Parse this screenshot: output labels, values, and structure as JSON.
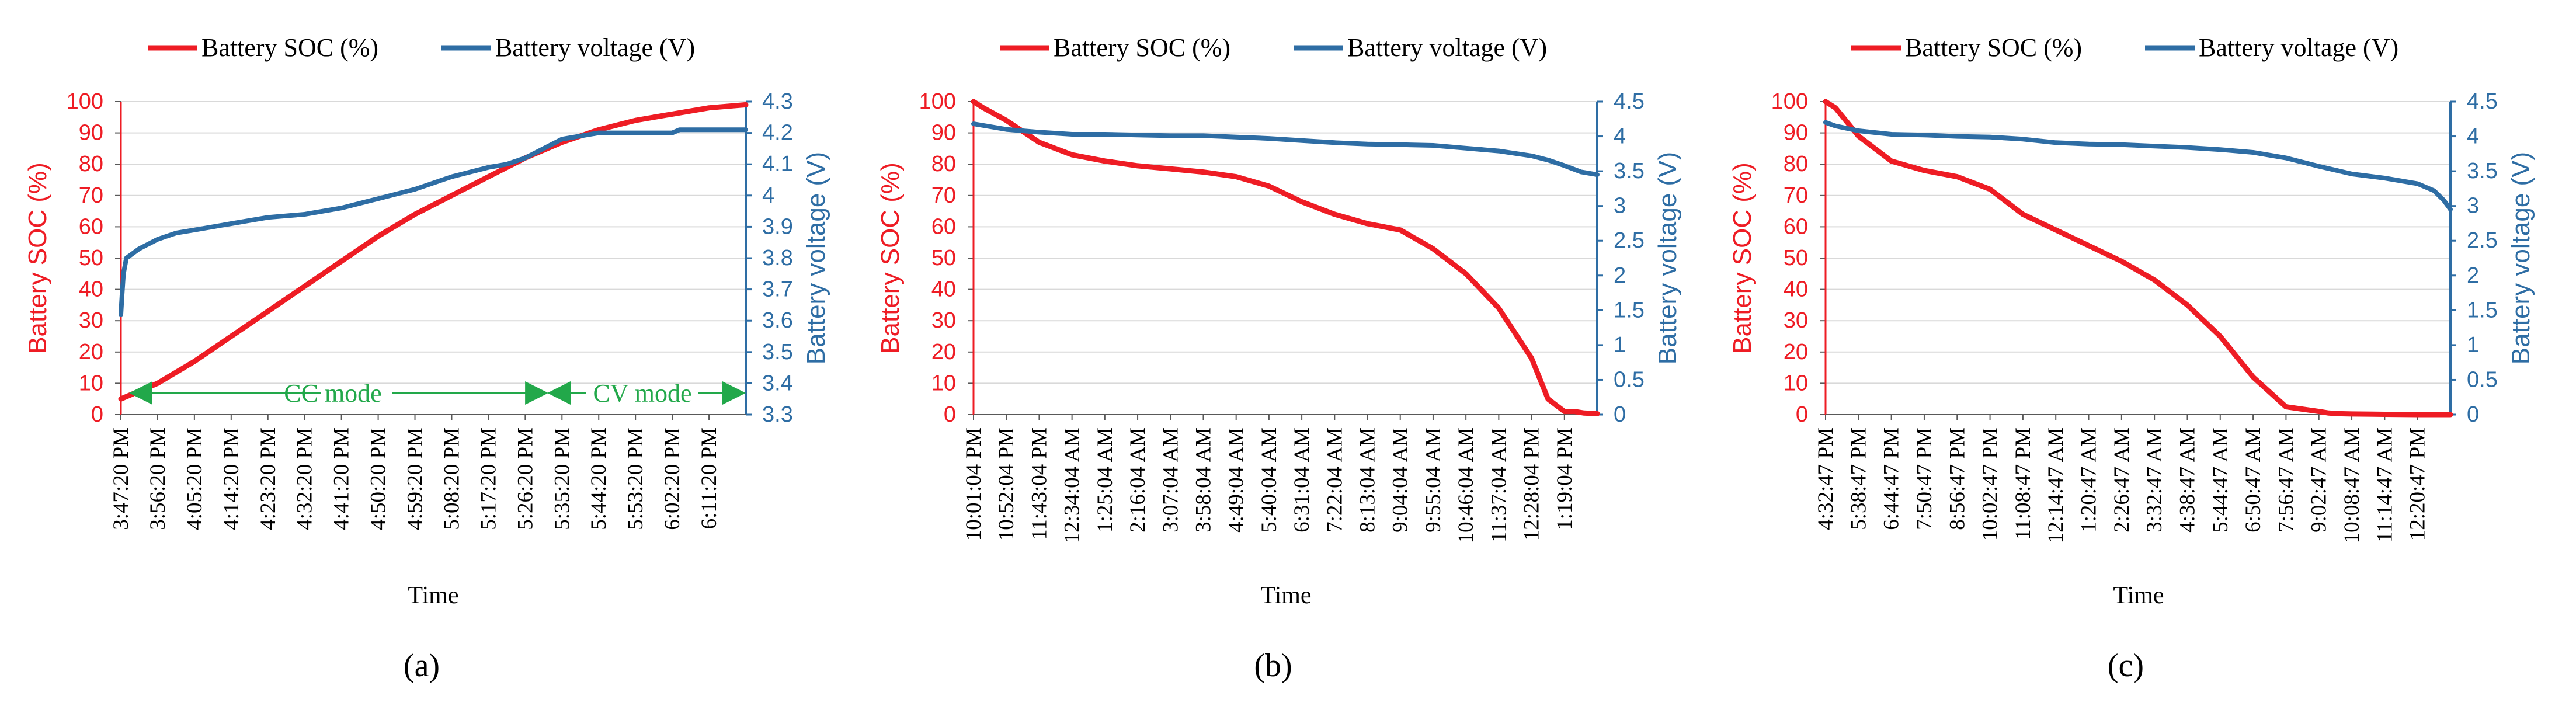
{
  "chart_data": [
    {
      "type": "line",
      "caption": "(a)",
      "xlabel": "Time",
      "legend": [
        "Battery SOC (%)",
        "Battery voltage (V)"
      ],
      "left_axis": {
        "label": "Battery SOC (%)",
        "ylim": [
          0,
          100
        ],
        "ticks": [
          "0",
          "10",
          "20",
          "30",
          "40",
          "50",
          "60",
          "70",
          "80",
          "90",
          "100"
        ]
      },
      "right_axis": {
        "label": "Battery voltage (V)",
        "ylim": [
          3.3,
          4.3
        ],
        "ticks": [
          "3.3",
          "3.4",
          "3.5",
          "3.6",
          "3.7",
          "3.8",
          "3.9",
          "4",
          "4.1",
          "4.2",
          "4.3"
        ]
      },
      "x_ticks": [
        "3:47:20 PM",
        "3:56:20 PM",
        "4:05:20 PM",
        "4:14:20 PM",
        "4:23:20 PM",
        "4:32:20 PM",
        "4:41:20 PM",
        "4:50:20 PM",
        "4:59:20 PM",
        "5:08:20 PM",
        "5:17:20 PM",
        "5:26:20 PM",
        "5:35:20 PM",
        "5:44:20 PM",
        "5:53:20 PM",
        "6:02:20 PM",
        "6:11:20 PM"
      ],
      "x_range": [
        0,
        17
      ],
      "series": [
        {
          "name": "Battery SOC (%)",
          "axis": "left",
          "x": [
            0,
            1,
            2,
            3,
            4,
            5,
            6,
            7,
            8,
            9,
            10,
            11,
            12,
            13,
            14,
            15,
            16,
            17
          ],
          "values": [
            5,
            10,
            17,
            25,
            33,
            41,
            49,
            57,
            64,
            70,
            76,
            82,
            87,
            91,
            94,
            96,
            98,
            99
          ]
        },
        {
          "name": "Battery voltage (V)",
          "axis": "right",
          "x": [
            0,
            0.03,
            0.07,
            0.15,
            0.5,
            1,
            1.5,
            2,
            2.5,
            3,
            4,
            5,
            6,
            7,
            8,
            8.5,
            9,
            10,
            10.5,
            11,
            12,
            13,
            14,
            15,
            15.2,
            16,
            17
          ],
          "values": [
            3.62,
            3.68,
            3.75,
            3.8,
            3.83,
            3.86,
            3.88,
            3.89,
            3.9,
            3.91,
            3.93,
            3.94,
            3.96,
            3.99,
            4.02,
            4.04,
            4.06,
            4.09,
            4.1,
            4.12,
            4.18,
            4.2,
            4.2,
            4.2,
            4.21,
            4.21,
            4.21
          ]
        }
      ],
      "annotations": [
        "CC mode",
        "CV mode"
      ]
    },
    {
      "type": "line",
      "caption": "(b)",
      "xlabel": "Time",
      "legend": [
        "Battery SOC (%)",
        "Battery voltage (V)"
      ],
      "left_axis": {
        "label": "Battery SOC (%)",
        "ylim": [
          0,
          100
        ],
        "ticks": [
          "0",
          "10",
          "20",
          "30",
          "40",
          "50",
          "60",
          "70",
          "80",
          "90",
          "100"
        ]
      },
      "right_axis": {
        "label": "Battery voltage (V)",
        "ylim": [
          0,
          4.5
        ],
        "ticks": [
          "0",
          "0.5",
          "1",
          "1.5",
          "2",
          "2.5",
          "3",
          "3.5",
          "4",
          "4.5"
        ]
      },
      "x_ticks": [
        "10:01:04 PM",
        "10:52:04 PM",
        "11:43:04 PM",
        "12:34:04 AM",
        "1:25:04 AM",
        "2:16:04 AM",
        "3:07:04 AM",
        "3:58:04 AM",
        "4:49:04 AM",
        "5:40:04 AM",
        "6:31:04 AM",
        "7:22:04 AM",
        "8:13:04 AM",
        "9:04:04 AM",
        "9:55:04 AM",
        "10:46:04 AM",
        "11:37:04 AM",
        "12:28:04 PM",
        "1:19:04 PM"
      ],
      "x_range": [
        0,
        19
      ],
      "series": [
        {
          "name": "Battery SOC (%)",
          "axis": "left",
          "x": [
            0,
            0.3,
            1,
            2,
            3,
            4,
            5,
            6,
            7,
            8,
            9,
            10,
            11,
            12,
            13,
            14,
            15,
            16,
            17,
            17.5,
            18,
            18.3,
            18.6,
            19
          ],
          "values": [
            100,
            98,
            94,
            87,
            83,
            81,
            79.5,
            78.5,
            77.5,
            76,
            73,
            68,
            64,
            61,
            59,
            53,
            45,
            34,
            18,
            5,
            1,
            1,
            0.5,
            0.3
          ]
        },
        {
          "name": "Battery voltage (V)",
          "axis": "right",
          "x": [
            0,
            1,
            2,
            3,
            4,
            5,
            6,
            7,
            8,
            9,
            10,
            11,
            12,
            13,
            14,
            15,
            16,
            17,
            17.5,
            18,
            18.5,
            19
          ],
          "values": [
            4.18,
            4.1,
            4.06,
            4.03,
            4.03,
            4.02,
            4.01,
            4.01,
            3.99,
            3.97,
            3.94,
            3.91,
            3.89,
            3.88,
            3.87,
            3.83,
            3.79,
            3.72,
            3.66,
            3.58,
            3.49,
            3.45
          ]
        }
      ]
    },
    {
      "type": "line",
      "caption": "(c)",
      "xlabel": "Time",
      "legend": [
        "Battery SOC (%)",
        "Battery voltage (V)"
      ],
      "left_axis": {
        "label": "Battery SOC (%)",
        "ylim": [
          0,
          100
        ],
        "ticks": [
          "0",
          "10",
          "20",
          "30",
          "40",
          "50",
          "60",
          "70",
          "80",
          "90",
          "100"
        ]
      },
      "right_axis": {
        "label": "Battery voltage (V)",
        "ylim": [
          0,
          4.5
        ],
        "ticks": [
          "0",
          "0.5",
          "1",
          "1.5",
          "2",
          "2.5",
          "3",
          "3.5",
          "4",
          "4.5"
        ]
      },
      "x_ticks": [
        "4:32:47 PM",
        "5:38:47 PM",
        "6:44:47 PM",
        "7:50:47 PM",
        "8:56:47 PM",
        "10:02:47 PM",
        "11:08:47 PM",
        "12:14:47 AM",
        "1:20:47 AM",
        "2:26:47 AM",
        "3:32:47 AM",
        "4:38:47 AM",
        "5:44:47 AM",
        "6:50:47 AM",
        "7:56:47 AM",
        "9:02:47 AM",
        "10:08:47 AM",
        "11:14:47 AM",
        "12:20:47 PM"
      ],
      "x_range": [
        0,
        19
      ],
      "series": [
        {
          "name": "Battery SOC (%)",
          "axis": "left",
          "x": [
            0,
            0.3,
            1,
            2,
            3,
            4,
            5,
            6,
            7,
            8,
            9,
            10,
            11,
            12,
            13,
            14,
            15,
            15.3,
            15.6,
            16,
            17,
            18,
            19
          ],
          "values": [
            100,
            98,
            89,
            81,
            78,
            76,
            72,
            64,
            59,
            54,
            49,
            43,
            35,
            25,
            12,
            2.5,
            1,
            0.5,
            0.3,
            0.2,
            0.1,
            0,
            0
          ]
        },
        {
          "name": "Battery voltage (V)",
          "axis": "right",
          "x": [
            0,
            0.3,
            1,
            2,
            3,
            4,
            5,
            6,
            7,
            8,
            9,
            10,
            11,
            12,
            13,
            14,
            15,
            16,
            17,
            18,
            18.5,
            18.8,
            19
          ],
          "values": [
            4.2,
            4.15,
            4.08,
            4.03,
            4.02,
            4.0,
            3.99,
            3.96,
            3.91,
            3.89,
            3.88,
            3.86,
            3.84,
            3.81,
            3.77,
            3.69,
            3.57,
            3.46,
            3.4,
            3.32,
            3.22,
            3.08,
            2.95
          ]
        }
      ]
    }
  ],
  "colors": {
    "soc": "#ee1c24",
    "voltage": "#2e6da4",
    "mode_arrow": "#22a84a",
    "grid": "#d9d9d9",
    "axis": "#595959"
  }
}
